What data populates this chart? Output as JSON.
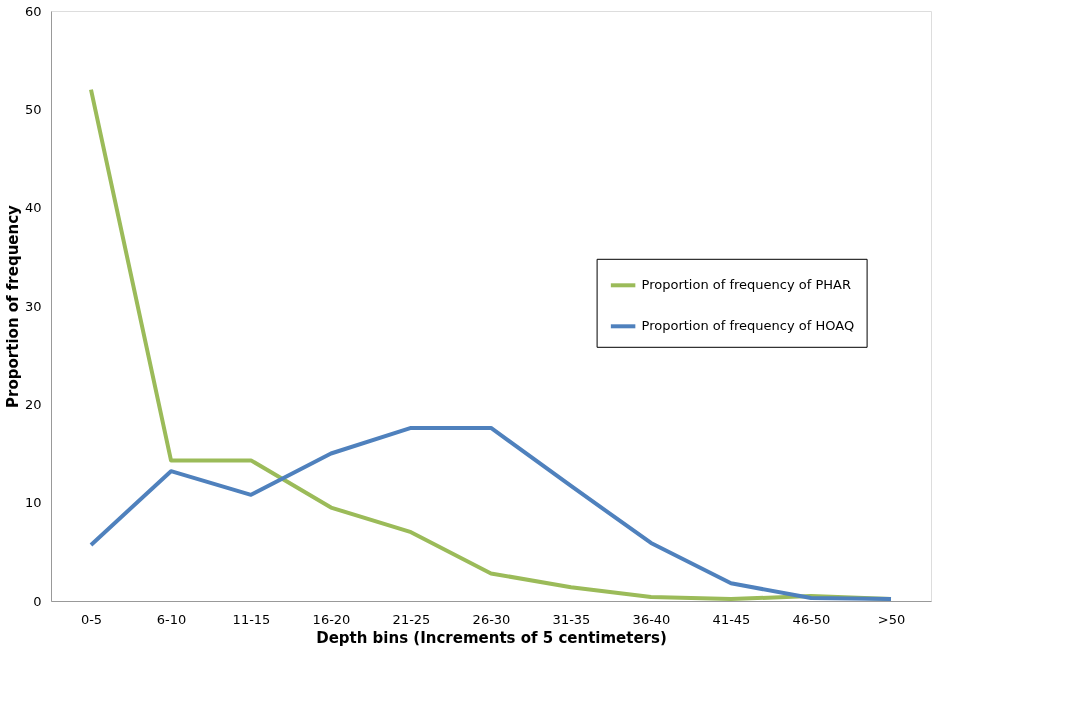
{
  "chart_data": {
    "type": "line",
    "xlabel": "Depth bins (Increments of 5 centimeters)",
    "ylabel": "Proportion of frequency",
    "categories": [
      "0-5",
      "6-10",
      "11-15",
      "16-20",
      "21-25",
      "26-30",
      "31-35",
      "36-40",
      "41-45",
      "46-50",
      ">50"
    ],
    "series": [
      {
        "name": "Proportion of frequency of PHAR",
        "color": "#9bbb59",
        "values": [
          52,
          14.3,
          14.3,
          9.5,
          7.0,
          2.8,
          1.4,
          0.4,
          0.2,
          0.5,
          0.2
        ]
      },
      {
        "name": "Proportion of frequency of HOAQ",
        "color": "#4f81bd",
        "values": [
          5.7,
          13.2,
          10.8,
          15.0,
          17.6,
          17.6,
          11.7,
          5.9,
          1.8,
          0.3,
          0.2
        ]
      }
    ],
    "ylim": [
      0,
      60
    ],
    "yticks": [
      0,
      10,
      20,
      30,
      40,
      50,
      60
    ],
    "grid": false,
    "legend": "right",
    "marker": "none",
    "line_style": "solid"
  }
}
